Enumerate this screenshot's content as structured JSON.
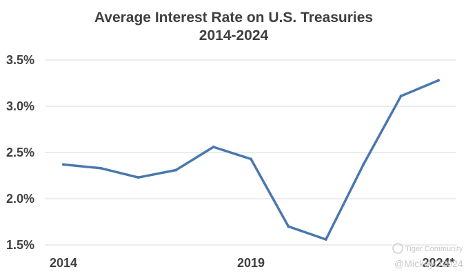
{
  "chart_data": {
    "type": "line",
    "title": "Average Interest Rate on U.S. Treasuries",
    "subtitle": "2014-2024",
    "xlabel": "",
    "ylabel": "",
    "x": [
      2014,
      2015,
      2016,
      2017,
      2018,
      2019,
      2020,
      2021,
      2022,
      2023,
      2024
    ],
    "x_tick_labels": [
      {
        "x": 2014,
        "label": "2014"
      },
      {
        "x": 2019,
        "label": "2019"
      },
      {
        "x": 2024,
        "label": "2024*"
      }
    ],
    "ylim": [
      1.5,
      3.5
    ],
    "y_ticks": [
      1.5,
      2.0,
      2.5,
      3.0,
      3.5
    ],
    "y_tick_labels": [
      "1.5%",
      "2.0%",
      "2.5%",
      "3.0%",
      "3.5%"
    ],
    "grid": true,
    "series": [
      {
        "name": "Average Interest Rate",
        "color": "#4a77ae",
        "values": [
          2.37,
          2.33,
          2.23,
          2.31,
          2.56,
          2.43,
          1.7,
          1.56,
          2.37,
          3.11,
          3.28
        ]
      }
    ]
  },
  "watermark": {
    "brand": "Tiger Community",
    "handle": "@MickeyO2024"
  }
}
